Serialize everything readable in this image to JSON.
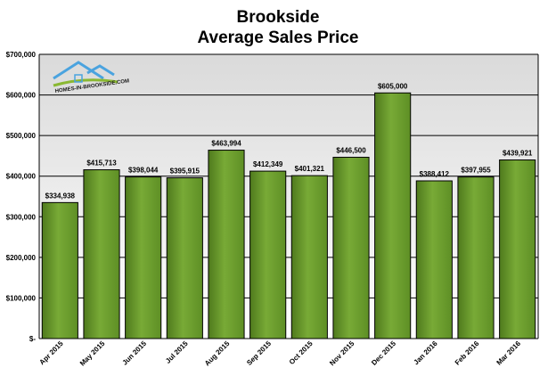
{
  "chart_data": {
    "type": "bar",
    "title_lines": [
      "Brookside",
      "Average Sales Price"
    ],
    "categories": [
      "Apr 2015",
      "May 2015",
      "Jun 2015",
      "Jul 2015",
      "Aug 2015",
      "Sep 2015",
      "Oct 2015",
      "Nov 2015",
      "Dec 2015",
      "Jan 2016",
      "Feb 2016",
      "Mar 2016"
    ],
    "values": [
      334938,
      415713,
      398044,
      395915,
      463994,
      412349,
      401321,
      446500,
      605000,
      388412,
      397955,
      439921
    ],
    "value_labels": [
      "$334,938",
      "$415,713",
      "$398,044",
      "$395,915",
      "$463,994",
      "$412,349",
      "$401,321",
      "$446,500",
      "$605,000",
      "$388,412",
      "$397,955",
      "$439,921"
    ],
    "ylim": [
      0,
      700000
    ],
    "y_ticks": [
      0,
      100000,
      200000,
      300000,
      400000,
      500000,
      600000,
      700000
    ],
    "y_tick_labels": [
      "$-",
      "$100,000",
      "$200,000",
      "$300,000",
      "$400,000",
      "$500,000",
      "$600,000",
      "$700,000"
    ],
    "bar_color": "#6a9a2c",
    "grid": true,
    "legend": "none"
  },
  "logo": {
    "text": "HOMES-IN-BROOKSIDE.COM",
    "house_color": "#4aa3df",
    "accent_color": "#8ab832"
  }
}
